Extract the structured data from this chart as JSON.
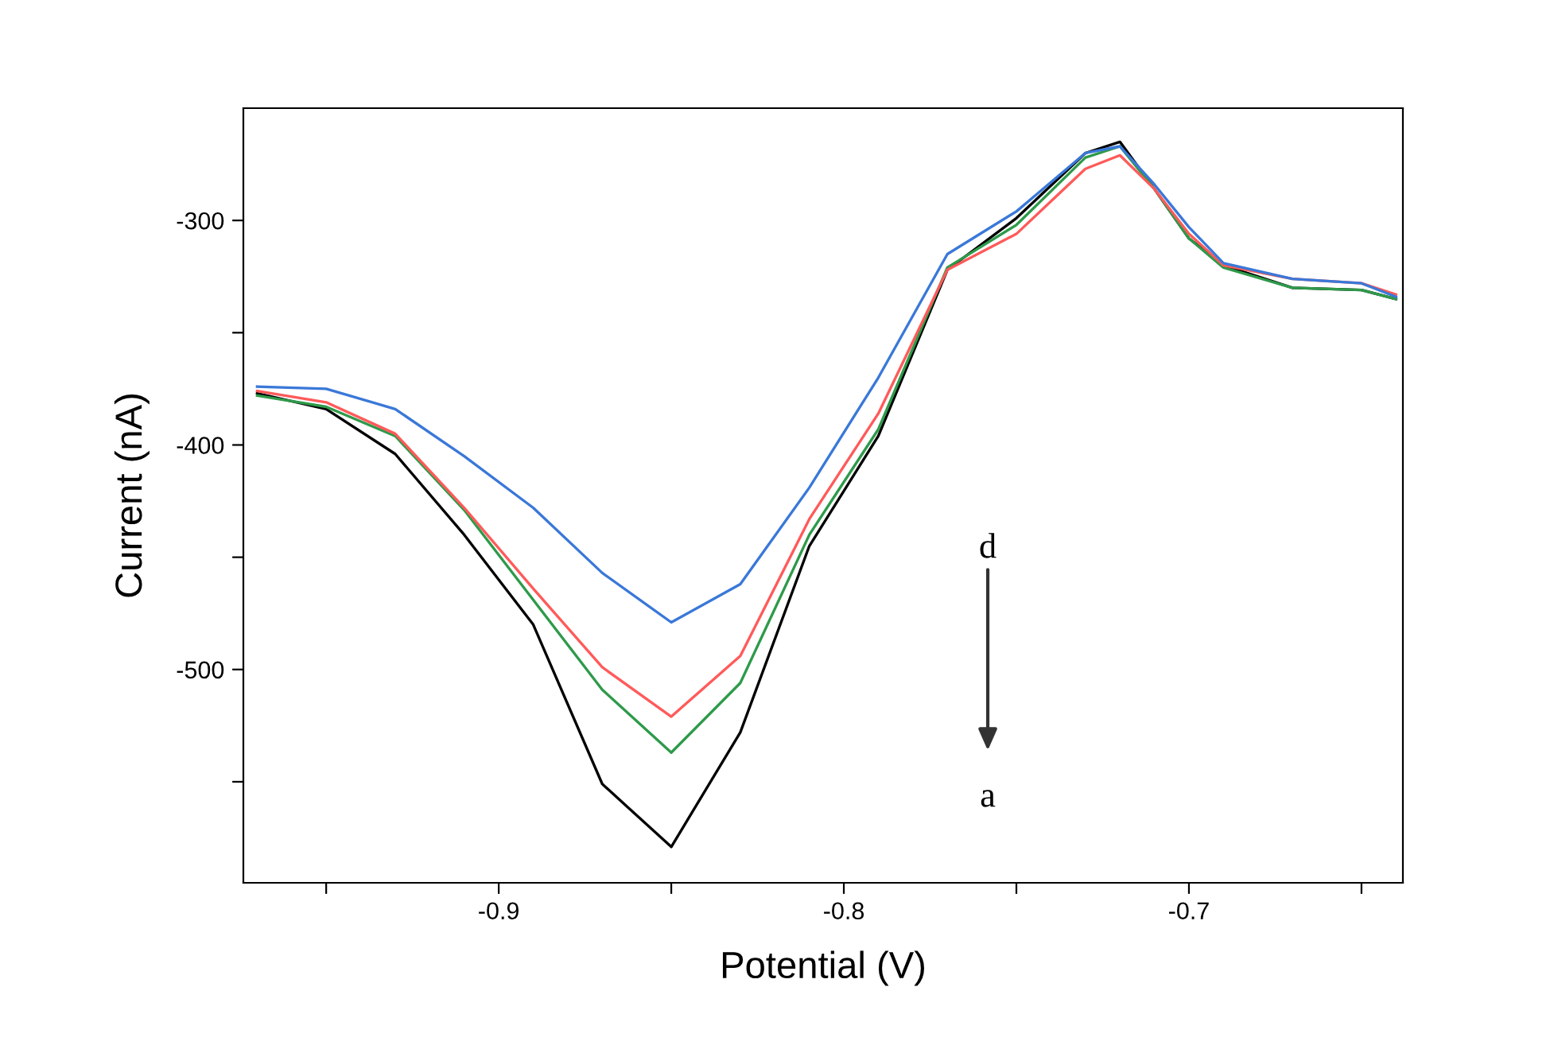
{
  "chart_data": {
    "type": "line",
    "xlabel": "Potential (V)",
    "ylabel": "Current (nA)",
    "x": [
      -0.97,
      -0.95,
      -0.93,
      -0.91,
      -0.89,
      -0.87,
      -0.85,
      -0.83,
      -0.81,
      -0.79,
      -0.77,
      -0.75,
      -0.73,
      -0.72,
      -0.71,
      -0.7,
      -0.69,
      -0.67,
      -0.65,
      -0.64
    ],
    "series": [
      {
        "color": "#000000",
        "values": [
          -377,
          -384,
          -404,
          -440,
          -480,
          -551,
          -579,
          -528,
          -445,
          -396,
          -322,
          -299,
          -270,
          -265,
          -286,
          -308,
          -320,
          -330,
          -331,
          -335
        ]
      },
      {
        "color": "#2e9a4a",
        "values": [
          -378,
          -383,
          -396,
          -429,
          -469,
          -509,
          -537,
          -506,
          -440,
          -393,
          -321,
          -302,
          -272,
          -267,
          -286,
          -308,
          -321,
          -330,
          -331,
          -335
        ]
      },
      {
        "color": "#ff5a5a",
        "values": [
          -376,
          -381,
          -395,
          -428,
          -464,
          -499,
          -521,
          -494,
          -433,
          -386,
          -322,
          -306,
          -277,
          -271,
          -286,
          -306,
          -320,
          -326,
          -328,
          -333
        ]
      },
      {
        "color": "#3a78d8",
        "values": [
          -374,
          -375,
          -384,
          -405,
          -428,
          -457,
          -479,
          -462,
          -419,
          -370,
          -315,
          -296,
          -270,
          -267,
          -284,
          -303,
          -319,
          -326,
          -328,
          -334
        ]
      }
    ],
    "xlim": [
      -0.974,
      -0.638
    ],
    "ylim": [
      -595,
      -250
    ],
    "xticks": [
      {
        "value": -0.95,
        "label": null
      },
      -0.9,
      {
        "value": -0.85,
        "label": null
      },
      -0.8,
      {
        "value": -0.75,
        "label": null
      },
      -0.7,
      {
        "value": -0.65,
        "label": null
      }
    ],
    "yticks": [
      {
        "value": -550,
        "label": null
      },
      -500,
      {
        "value": -450,
        "label": null
      },
      -400,
      {
        "value": -350,
        "label": null
      },
      -300
    ],
    "annotations": [
      "d",
      "a"
    ],
    "grid": false,
    "legend": false,
    "marker": "none",
    "line_style": "solid"
  }
}
